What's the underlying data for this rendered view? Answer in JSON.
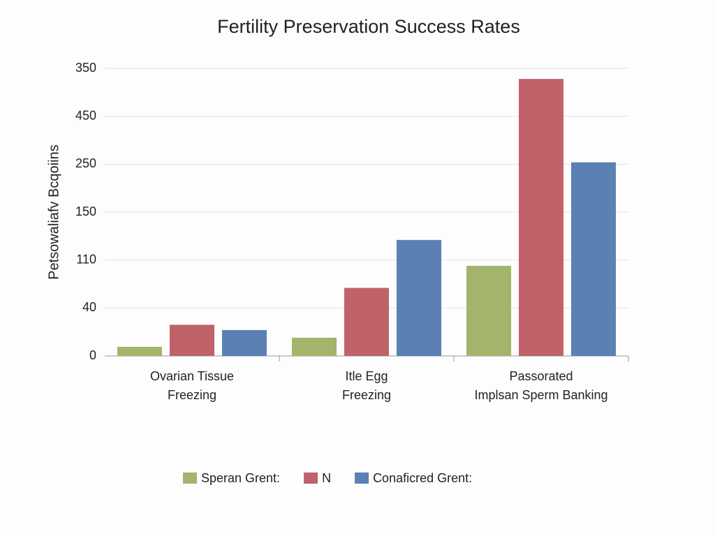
{
  "chart_data": {
    "type": "bar",
    "title": "Fertility Preservation Success Rates",
    "y_label": "Petsowaliafv Bcqoiins",
    "categories": [
      [
        "Ovarian Tissue",
        "Freezing"
      ],
      [
        "Itle Egg",
        "Freezing"
      ],
      [
        "Passorated",
        "Implsan Sperm Banking"
      ]
    ],
    "series": [
      {
        "name": "Speran Grent:",
        "color": "#a3b46c",
        "values": [
          0.19,
          0.38,
          1.88
        ]
      },
      {
        "name": "N",
        "color": "#c0626a",
        "values": [
          0.65,
          1.42,
          5.78
        ]
      },
      {
        "name": "Conaficred Grent:",
        "color": "#5b80b4",
        "values": [
          0.54,
          2.42,
          4.04
        ]
      }
    ],
    "ylim": [
      0,
      6
    ],
    "yticks": [
      {
        "value": 0,
        "label": "0"
      },
      {
        "value": 1,
        "label": "40"
      },
      {
        "value": 2,
        "label": "110"
      },
      {
        "value": 3,
        "label": "150"
      },
      {
        "value": 4,
        "label": "250"
      },
      {
        "value": 5,
        "label": "450"
      },
      {
        "value": 6,
        "label": "350"
      }
    ],
    "grid": true
  }
}
